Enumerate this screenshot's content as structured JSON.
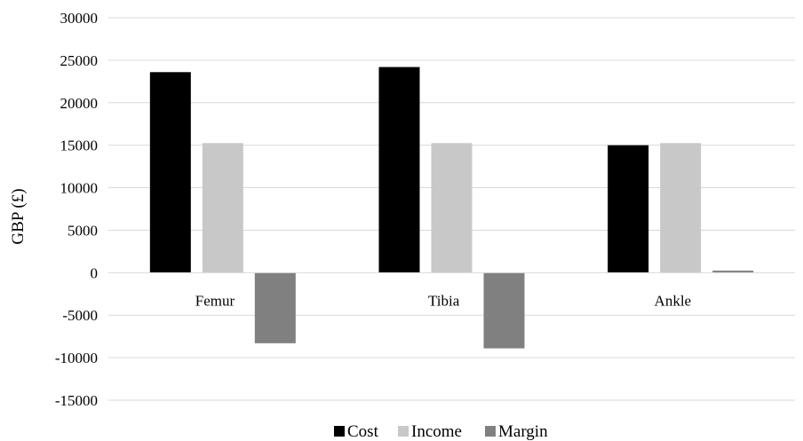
{
  "chart_data": {
    "type": "bar",
    "categories": [
      "Femur",
      "Tibia",
      "Ankle"
    ],
    "series": [
      {
        "name": "Cost",
        "values": [
          23600,
          24200,
          15000
        ],
        "color": "#000000"
      },
      {
        "name": "Income",
        "values": [
          15250,
          15250,
          15250
        ],
        "color": "#c8c8c8"
      },
      {
        "name": "Margin",
        "values": [
          -8300,
          -8900,
          250
        ],
        "color": "#808080"
      }
    ],
    "title": "",
    "xlabel": "",
    "ylabel": "GBP (£)",
    "ylim": [
      -15000,
      30000
    ],
    "yticks": [
      30000,
      25000,
      20000,
      15000,
      10000,
      5000,
      0,
      -5000,
      -10000,
      -15000
    ],
    "grid": true,
    "legend_position": "bottom"
  }
}
